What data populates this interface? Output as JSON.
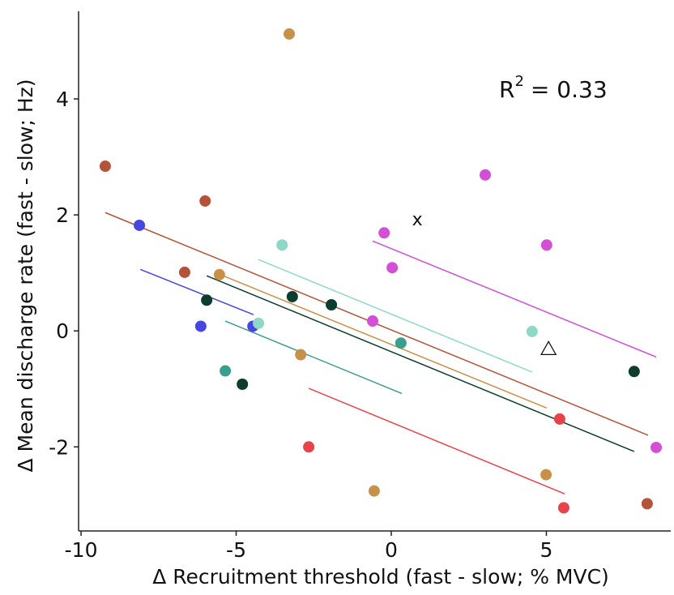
{
  "chart_data": {
    "type": "scatter",
    "x_label": "Δ Recruitment threshold (fast - slow; % MVC)",
    "y_label": "Δ Mean discharge rate (fast - slow; Hz)",
    "xlim": [
      -10.08,
      9.01
    ],
    "ylim": [
      -3.45,
      5.51
    ],
    "xticks": [
      -10,
      -5,
      0,
      5
    ],
    "yticks": [
      -2,
      0,
      2,
      4
    ],
    "grid": false,
    "fit_annotation": {
      "base": "R",
      "superscript": "2",
      "text": "= 0.33"
    },
    "annotations": [
      {
        "text": "x",
        "x": 0.84,
        "y": 1.93
      }
    ],
    "markers": [
      {
        "shape": "triangle",
        "x": 5.07,
        "y": -0.31
      }
    ],
    "series": [
      {
        "color": "#b5533a",
        "x": [
          -9.22,
          -6.0,
          -6.66,
          8.25
        ],
        "y": [
          2.84,
          2.24,
          1.01,
          -2.98
        ],
        "fit": {
          "x": [
            -9.22,
            8.28
          ],
          "y": [
            2.04,
            -1.8
          ]
        }
      },
      {
        "color": "#4646e0",
        "x": [
          -8.12,
          -6.14,
          -4.46
        ],
        "y": [
          1.82,
          0.08,
          0.08
        ],
        "fit": {
          "x": [
            -8.09,
            -4.44
          ],
          "y": [
            1.06,
            0.28
          ]
        }
      },
      {
        "color": "#c8914a",
        "x": [
          -3.29,
          -5.54,
          -2.92,
          -0.55,
          4.99
        ],
        "y": [
          5.12,
          0.97,
          -0.41,
          -2.76,
          -2.48
        ],
        "fit": {
          "x": [
            -5.69,
            5.01
          ],
          "y": [
            1.01,
            -1.33
          ]
        }
      },
      {
        "color": "#0d3d2e",
        "x": [
          -5.95,
          -4.8,
          -3.19,
          -1.93,
          7.83
        ],
        "y": [
          0.53,
          -0.92,
          0.59,
          0.45,
          -0.7
        ],
        "fit": {
          "x": [
            -5.95,
            7.83
          ],
          "y": [
            0.95,
            -2.08
          ]
        }
      },
      {
        "color": "#8fd8c8",
        "x": [
          -3.52,
          -4.28,
          4.54
        ],
        "y": [
          1.48,
          0.13,
          -0.01
        ],
        "fit": {
          "x": [
            -4.28,
            4.54
          ],
          "y": [
            1.23,
            -0.71
          ]
        }
      },
      {
        "color": "#3a9e8e",
        "x": [
          -5.35,
          0.31
        ],
        "y": [
          -0.69,
          -0.21
        ],
        "fit": {
          "x": [
            -5.35,
            0.34
          ],
          "y": [
            0.17,
            -1.08
          ]
        }
      },
      {
        "color": "#d24fd6",
        "x": [
          -0.23,
          0.03,
          -0.6,
          3.03,
          5.01,
          8.54
        ],
        "y": [
          1.69,
          1.09,
          0.17,
          2.69,
          1.48,
          -2.01
        ],
        "fit": {
          "x": [
            -0.6,
            8.54
          ],
          "y": [
            1.55,
            -0.45
          ]
        }
      },
      {
        "color": "#e8434a",
        "x": [
          -2.66,
          5.43,
          5.56
        ],
        "y": [
          -2.0,
          -1.52,
          -3.05
        ],
        "fit": {
          "x": [
            -2.66,
            5.59
          ],
          "y": [
            -0.99,
            -2.81
          ]
        }
      }
    ]
  }
}
